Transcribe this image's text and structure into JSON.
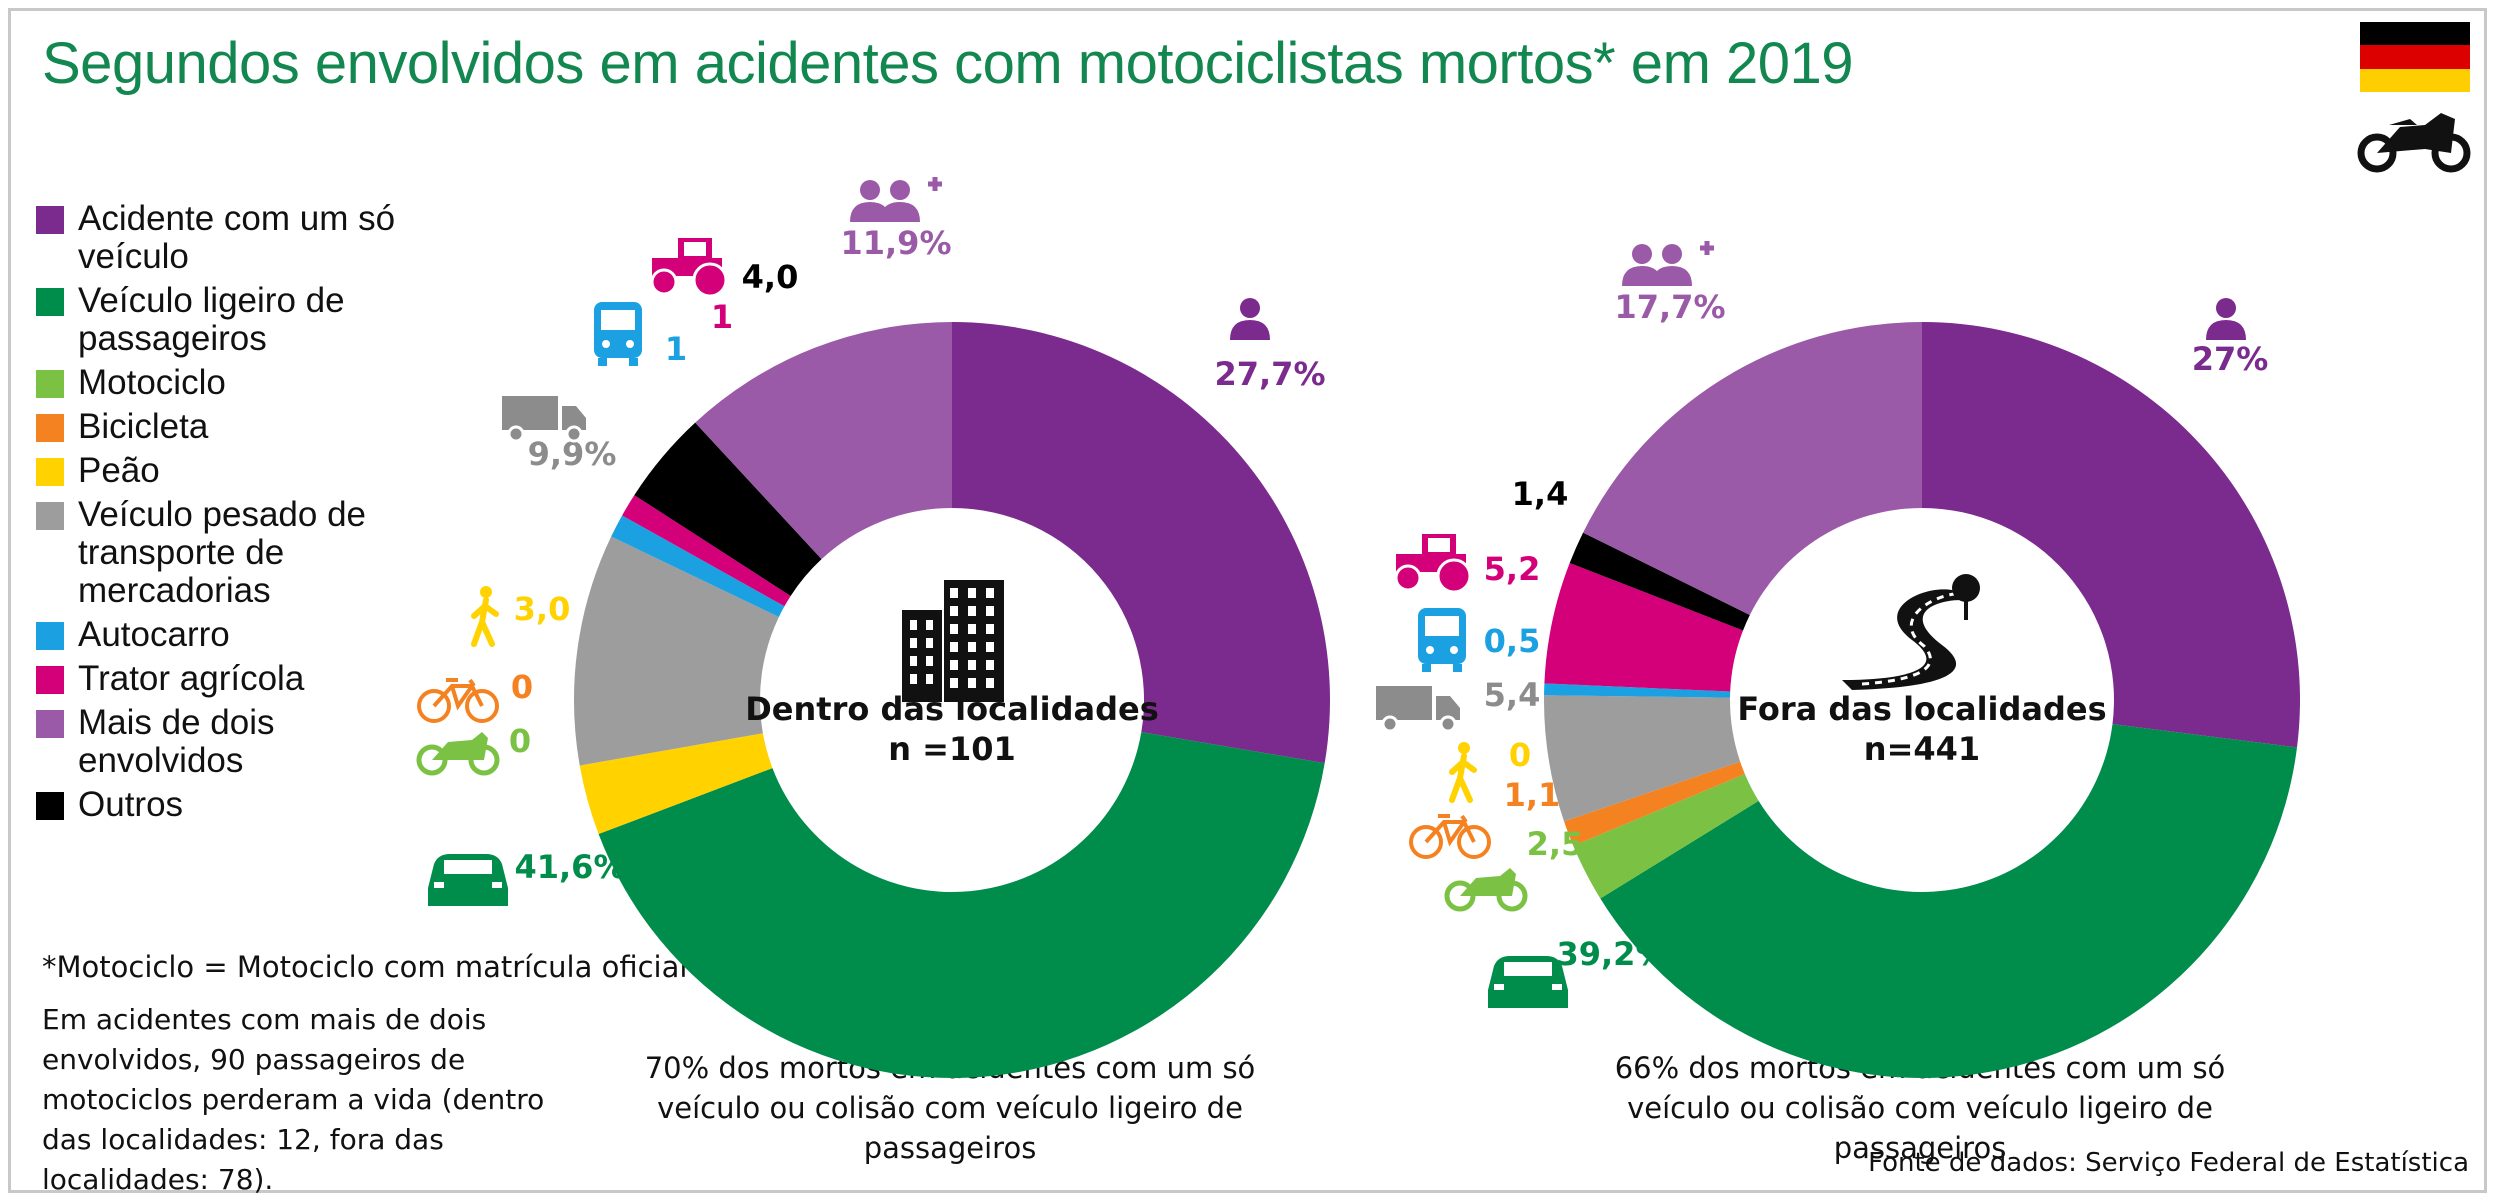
{
  "title": "Segundos envolvidos em acidentes com motociclistas mortos* em 2019",
  "legend": [
    {
      "key": "single",
      "label": "Acidente com um só veículo",
      "color": "#7b2a8e"
    },
    {
      "key": "car",
      "label": "Veículo ligeiro de passageiros",
      "color": "#008c4a"
    },
    {
      "key": "moto",
      "label": "Motociclo",
      "color": "#7bc143"
    },
    {
      "key": "bike",
      "label": "Bicicleta",
      "color": "#f58220"
    },
    {
      "key": "ped",
      "label": "Peão",
      "color": "#ffd200"
    },
    {
      "key": "truck",
      "label": "Veículo pesado de transporte de mercadorias",
      "color": "#9d9d9d"
    },
    {
      "key": "bus",
      "label": "Autocarro",
      "color": "#1ba1e2"
    },
    {
      "key": "tractor",
      "label": "Trator agrícola",
      "color": "#d4007a"
    },
    {
      "key": "multi",
      "label": "Mais de dois envolvidos",
      "color": "#9a5aa8"
    },
    {
      "key": "other",
      "label": "Outros",
      "color": "#000000"
    }
  ],
  "chart_data": [
    {
      "type": "pie",
      "title": "Dentro das localidades",
      "n_label": "n =101",
      "slices": [
        {
          "key": "single",
          "value": 27.7,
          "label": "27,7%"
        },
        {
          "key": "car",
          "value": 41.6,
          "label": "41,6%"
        },
        {
          "key": "moto",
          "value": 0,
          "label": "0"
        },
        {
          "key": "bike",
          "value": 0,
          "label": "0"
        },
        {
          "key": "ped",
          "value": 3.0,
          "label": "3,0"
        },
        {
          "key": "truck",
          "value": 9.9,
          "label": "9,9%"
        },
        {
          "key": "bus",
          "value": 1,
          "label": "1"
        },
        {
          "key": "tractor",
          "value": 1,
          "label": "1"
        },
        {
          "key": "other",
          "value": 4.0,
          "label": "4,0"
        },
        {
          "key": "multi",
          "value": 11.9,
          "label": "11,9%"
        }
      ]
    },
    {
      "type": "pie",
      "title": "Fora das localidades",
      "n_label": "n=441",
      "slices": [
        {
          "key": "single",
          "value": 27,
          "label": "27%"
        },
        {
          "key": "car",
          "value": 39.2,
          "label": "39,2%"
        },
        {
          "key": "moto",
          "value": 2.5,
          "label": "2,5"
        },
        {
          "key": "bike",
          "value": 1.1,
          "label": "1,1"
        },
        {
          "key": "ped",
          "value": 0,
          "label": "0"
        },
        {
          "key": "truck",
          "value": 5.4,
          "label": "5,4"
        },
        {
          "key": "bus",
          "value": 0.5,
          "label": "0,5"
        },
        {
          "key": "tractor",
          "value": 5.2,
          "label": "5,2"
        },
        {
          "key": "other",
          "value": 1.4,
          "label": "1,4"
        },
        {
          "key": "multi",
          "value": 17.7,
          "label": "17,7%"
        }
      ]
    }
  ],
  "notes": {
    "footnote": "*Motociclo = Motociclo com matrícula oficial",
    "passengers": "Em acidentes com mais de dois envolvidos, 90 passageiros de motociclos perderam a vida (dentro das localidades: 12, fora das localidades: 78)."
  },
  "captions": {
    "left": "70% dos mortos em acidentes com um só veículo ou colisão com veículo ligeiro de passageiros",
    "right": "66% dos mortos em acidentes com um só veículo ou colisão com veículo ligeiro de passageiros"
  },
  "source": "Fonte de dados: Serviço Federal de Estatística",
  "flag_colors": [
    "#000000",
    "#dd0000",
    "#ffce00"
  ]
}
